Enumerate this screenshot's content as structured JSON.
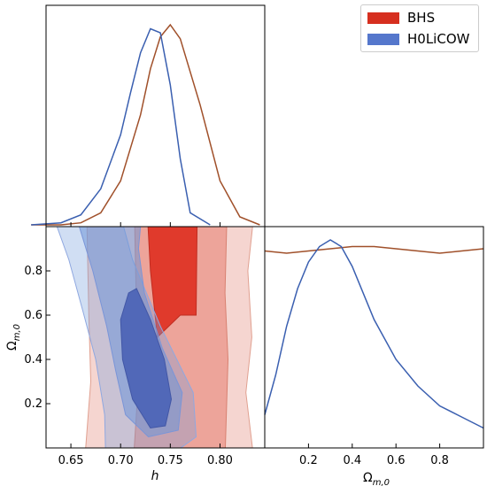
{
  "chart_data": {
    "type": "corner",
    "series": [
      {
        "name": "BHS",
        "color": "#d62f1f",
        "line_color": "#a0502a",
        "h_1d": {
          "x": [
            0.61,
            0.64,
            0.66,
            0.68,
            0.7,
            0.72,
            0.73,
            0.74,
            0.75,
            0.76,
            0.78,
            0.8,
            0.82,
            0.84
          ],
          "y": [
            0.0,
            0.0,
            0.01,
            0.06,
            0.22,
            0.55,
            0.78,
            0.94,
            1.0,
            0.93,
            0.6,
            0.22,
            0.04,
            0.0
          ]
        },
        "om_1d": {
          "x": [
            0.0,
            0.1,
            0.2,
            0.3,
            0.4,
            0.5,
            0.6,
            0.7,
            0.8,
            0.9,
            1.0
          ],
          "y": [
            0.89,
            0.88,
            0.89,
            0.9,
            0.91,
            0.91,
            0.9,
            0.89,
            0.88,
            0.89,
            0.9
          ]
        }
      },
      {
        "name": "H0LiCOW",
        "color": "#5577cc",
        "line_color": "#3a5fb0",
        "h_1d": {
          "x": [
            0.61,
            0.64,
            0.66,
            0.68,
            0.7,
            0.71,
            0.72,
            0.73,
            0.74,
            0.75,
            0.76,
            0.77,
            0.79
          ],
          "y": [
            0.0,
            0.01,
            0.05,
            0.18,
            0.45,
            0.66,
            0.86,
            0.98,
            0.96,
            0.7,
            0.33,
            0.06,
            0.0
          ]
        },
        "om_1d": {
          "x": [
            0.0,
            0.05,
            0.1,
            0.15,
            0.2,
            0.25,
            0.3,
            0.35,
            0.4,
            0.5,
            0.6,
            0.7,
            0.8,
            0.9,
            1.0
          ],
          "y": [
            0.15,
            0.33,
            0.55,
            0.72,
            0.84,
            0.91,
            0.94,
            0.91,
            0.82,
            0.58,
            0.4,
            0.28,
            0.19,
            0.14,
            0.09
          ]
        }
      }
    ],
    "xlabel_h": "h",
    "xlabel_om": "Ω_{m,0}",
    "ylabel_om": "Ω_{m,0}",
    "xlim_h": [
      0.625,
      0.845
    ],
    "xlim_om": [
      0.0,
      1.0
    ],
    "ylim_om": [
      0.0,
      1.0
    ],
    "xticks_h": [
      0.65,
      0.7,
      0.75,
      0.8
    ],
    "xticklabels_h": [
      "0.65",
      "0.70",
      "0.75",
      "0.80"
    ],
    "ticks_om": [
      0.2,
      0.4,
      0.6,
      0.8
    ],
    "ticklabels_om": [
      "0.2",
      "0.4",
      "0.6",
      "0.8"
    ],
    "legend_position": "top-right"
  }
}
